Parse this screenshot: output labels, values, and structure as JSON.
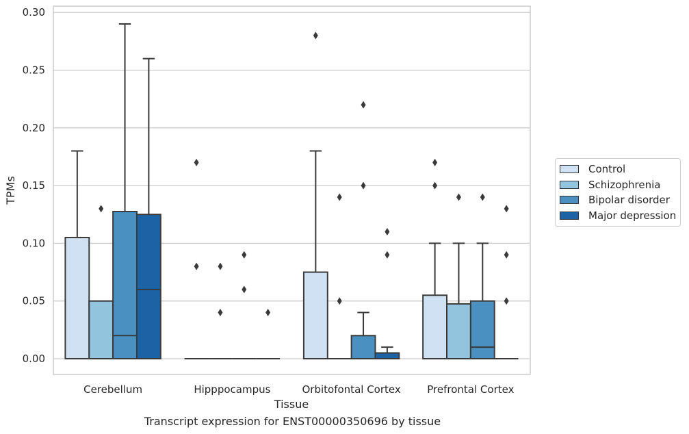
{
  "chart_data": {
    "type": "box",
    "caption": "Transcript expression for ENST00000350696 by tissue",
    "xlabel": "Tissue",
    "ylabel": "TPMs",
    "ylim": [
      -0.014,
      0.304
    ],
    "yticks": [
      "0.00",
      "0.05",
      "0.10",
      "0.15",
      "0.20",
      "0.25",
      "0.30"
    ],
    "grid": "horizontal",
    "legend_position": "right",
    "categories": [
      "Cerebellum",
      "Hipppocampus",
      "Orbitofontal Cortex",
      "Prefrontal Cortex"
    ],
    "series": [
      {
        "name": "Control",
        "color": "#cfe1f2",
        "boxes": [
          {
            "q1": 0,
            "median": 0,
            "q3": 0.105,
            "whisker_low": 0,
            "whisker_high": 0.18,
            "outliers": []
          },
          {
            "q1": 0,
            "median": 0,
            "q3": 0,
            "whisker_low": 0,
            "whisker_high": 0,
            "outliers": [
              0.17,
              0.08
            ]
          },
          {
            "q1": 0,
            "median": 0,
            "q3": 0.075,
            "whisker_low": 0,
            "whisker_high": 0.18,
            "outliers": [
              0.28
            ]
          },
          {
            "q1": 0,
            "median": 0,
            "q3": 0.055,
            "whisker_low": 0,
            "whisker_high": 0.1,
            "outliers": [
              0.17,
              0.15
            ]
          }
        ]
      },
      {
        "name": "Schizophrenia",
        "color": "#93c4de",
        "boxes": [
          {
            "q1": 0,
            "median": 0,
            "q3": 0.05,
            "whisker_low": 0,
            "whisker_high": 0.05,
            "outliers": [
              0.13
            ]
          },
          {
            "q1": 0,
            "median": 0,
            "q3": 0,
            "whisker_low": 0,
            "whisker_high": 0,
            "outliers": [
              0.08,
              0.04
            ]
          },
          {
            "q1": 0,
            "median": 0,
            "q3": 0,
            "whisker_low": 0,
            "whisker_high": 0,
            "outliers": [
              0.14,
              0.05
            ]
          },
          {
            "q1": 0,
            "median": 0,
            "q3": 0.0475,
            "whisker_low": 0,
            "whisker_high": 0.1,
            "outliers": [
              0.14
            ]
          }
        ]
      },
      {
        "name": "Bipolar disorder",
        "color": "#4a91c2",
        "boxes": [
          {
            "q1": 0,
            "median": 0.02,
            "q3": 0.1275,
            "whisker_low": 0,
            "whisker_high": 0.29,
            "outliers": []
          },
          {
            "q1": 0,
            "median": 0,
            "q3": 0,
            "whisker_low": 0,
            "whisker_high": 0,
            "outliers": [
              0.09,
              0.06
            ]
          },
          {
            "q1": 0,
            "median": 0,
            "q3": 0.02,
            "whisker_low": 0,
            "whisker_high": 0.04,
            "outliers": [
              0.22,
              0.15
            ]
          },
          {
            "q1": 0,
            "median": 0.01,
            "q3": 0.05,
            "whisker_low": 0,
            "whisker_high": 0.1,
            "outliers": [
              0.14
            ]
          }
        ]
      },
      {
        "name": "Major depression",
        "color": "#1b63a5",
        "boxes": [
          {
            "q1": 0,
            "median": 0.06,
            "q3": 0.125,
            "whisker_low": 0,
            "whisker_high": 0.26,
            "outliers": []
          },
          {
            "q1": 0,
            "median": 0,
            "q3": 0,
            "whisker_low": 0,
            "whisker_high": 0,
            "outliers": [
              0.04
            ]
          },
          {
            "q1": 0,
            "median": 0,
            "q3": 0.005,
            "whisker_low": 0,
            "whisker_high": 0.01,
            "outliers": [
              0.11,
              0.09
            ]
          },
          {
            "q1": 0,
            "median": 0,
            "q3": 0,
            "whisker_low": 0,
            "whisker_high": 0,
            "outliers": [
              0.13,
              0.09,
              0.05
            ]
          }
        ]
      }
    ]
  }
}
